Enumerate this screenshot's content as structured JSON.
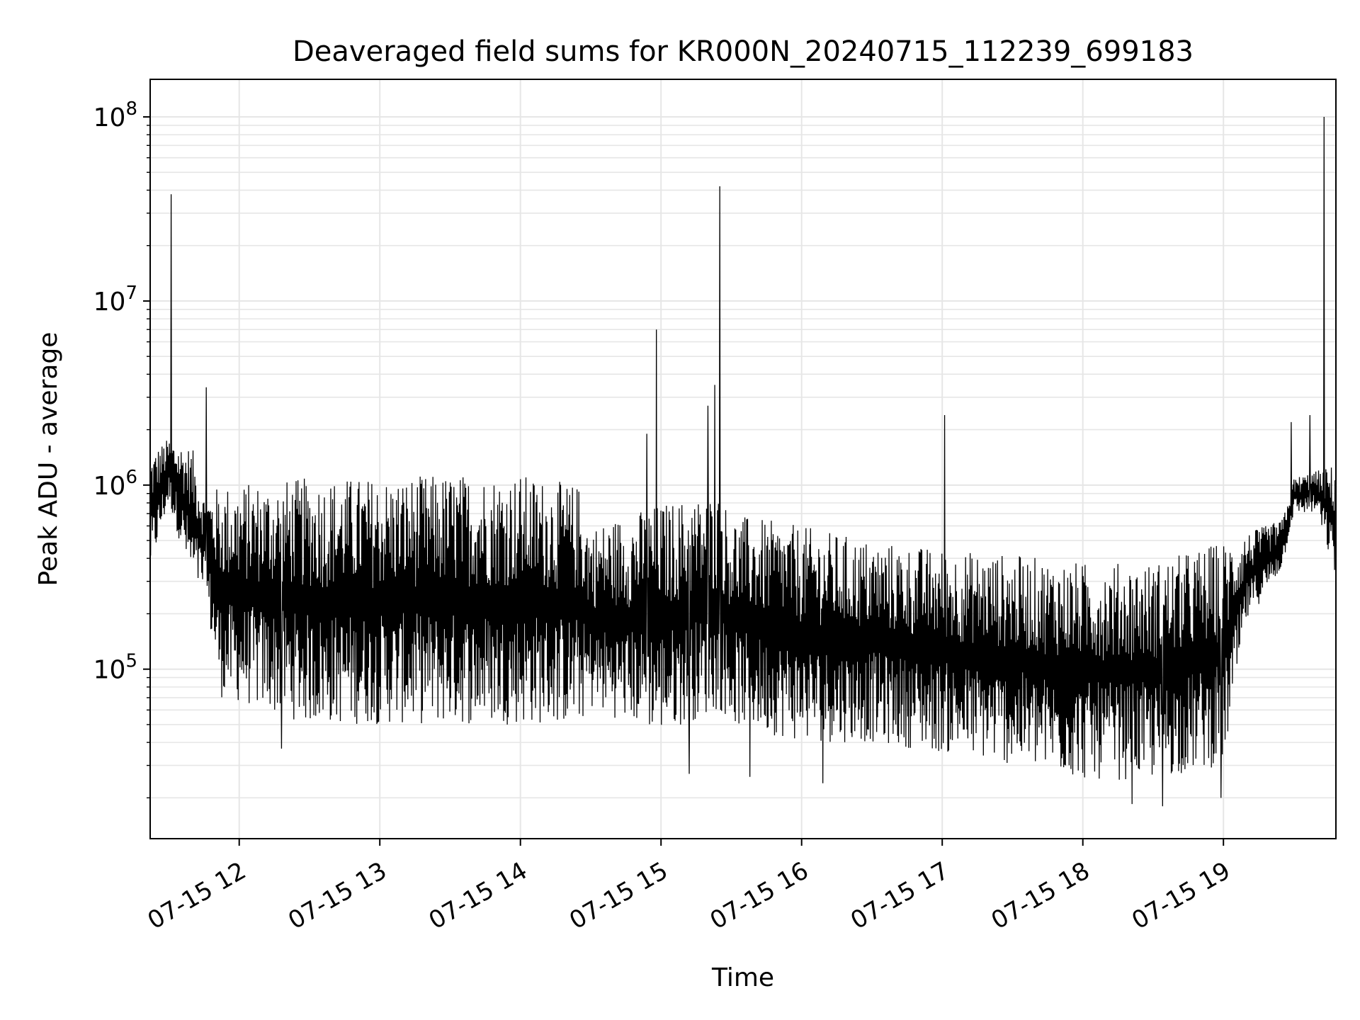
{
  "chart_data": {
    "type": "line",
    "title": "Deaveraged field sums for KR000N_20240715_112239_699183",
    "xlabel": "Time",
    "ylabel": "Peak ADU - average",
    "y_scale": "log",
    "ylim": [
      12000,
      160000000
    ],
    "xlim": [
      "2024-07-15 11:22",
      "2024-07-15 19:48"
    ],
    "grid": true,
    "line_color": "#000000",
    "grid_color": "#e6e6e6",
    "x_ticks": [
      {
        "label": "07-15 12",
        "time": "2024-07-15 12:00"
      },
      {
        "label": "07-15 13",
        "time": "2024-07-15 13:00"
      },
      {
        "label": "07-15 14",
        "time": "2024-07-15 14:00"
      },
      {
        "label": "07-15 15",
        "time": "2024-07-15 15:00"
      },
      {
        "label": "07-15 16",
        "time": "2024-07-15 16:00"
      },
      {
        "label": "07-15 17",
        "time": "2024-07-15 17:00"
      },
      {
        "label": "07-15 18",
        "time": "2024-07-15 18:00"
      },
      {
        "label": "07-15 19",
        "time": "2024-07-15 19:00"
      }
    ],
    "y_ticks": [
      {
        "base": "10",
        "exp": "5",
        "value": 100000
      },
      {
        "base": "10",
        "exp": "6",
        "value": 1000000
      },
      {
        "base": "10",
        "exp": "7",
        "value": 10000000
      },
      {
        "base": "10",
        "exp": "8",
        "value": 100000000
      }
    ],
    "series": [
      {
        "envelope": [
          {
            "time": "2024-07-15 11:22",
            "upper": 1500000,
            "lower": 330000
          },
          {
            "time": "2024-07-15 11:30",
            "upper": 1800000,
            "lower": 800000
          },
          {
            "time": "2024-07-15 11:40",
            "upper": 1600000,
            "lower": 280000
          },
          {
            "time": "2024-07-15 11:45",
            "upper": 900000,
            "lower": 250000
          },
          {
            "time": "2024-07-15 11:52",
            "upper": 1000000,
            "lower": 70000
          },
          {
            "time": "2024-07-15 12:30",
            "upper": 1100000,
            "lower": 50000
          },
          {
            "time": "2024-07-15 13:00",
            "upper": 1100000,
            "lower": 50000
          },
          {
            "time": "2024-07-15 13:30",
            "upper": 1150000,
            "lower": 50000
          },
          {
            "time": "2024-07-15 14:00",
            "upper": 1150000,
            "lower": 50000
          },
          {
            "time": "2024-07-15 14:25",
            "upper": 1000000,
            "lower": 50000
          },
          {
            "time": "2024-07-15 14:30",
            "upper": 600000,
            "lower": 60000
          },
          {
            "time": "2024-07-15 15:00",
            "upper": 800000,
            "lower": 45000
          },
          {
            "time": "2024-07-15 15:25",
            "upper": 900000,
            "lower": 60000
          },
          {
            "time": "2024-07-15 15:30",
            "upper": 700000,
            "lower": 50000
          },
          {
            "time": "2024-07-15 16:00",
            "upper": 600000,
            "lower": 40000
          },
          {
            "time": "2024-07-15 16:30",
            "upper": 500000,
            "lower": 40000
          },
          {
            "time": "2024-07-15 17:00",
            "upper": 450000,
            "lower": 35000
          },
          {
            "time": "2024-07-15 17:30",
            "upper": 420000,
            "lower": 30000
          },
          {
            "time": "2024-07-15 18:00",
            "upper": 380000,
            "lower": 25000
          },
          {
            "time": "2024-07-15 18:30",
            "upper": 380000,
            "lower": 25000
          },
          {
            "time": "2024-07-15 19:00",
            "upper": 500000,
            "lower": 30000
          },
          {
            "time": "2024-07-15 19:10",
            "upper": 550000,
            "lower": 180000
          },
          {
            "time": "2024-07-15 19:25",
            "upper": 650000,
            "lower": 350000
          },
          {
            "time": "2024-07-15 19:30",
            "upper": 1100000,
            "lower": 700000
          },
          {
            "time": "2024-07-15 19:40",
            "upper": 1200000,
            "lower": 700000
          },
          {
            "time": "2024-07-15 19:48",
            "upper": 1300000,
            "lower": 300000
          }
        ],
        "spikes": [
          {
            "time": "2024-07-15 11:31",
            "value": 38000000
          },
          {
            "time": "2024-07-15 11:46",
            "value": 3400000
          },
          {
            "time": "2024-07-15 14:58",
            "value": 7000000
          },
          {
            "time": "2024-07-15 14:54",
            "value": 1900000
          },
          {
            "time": "2024-07-15 15:20",
            "value": 2700000
          },
          {
            "time": "2024-07-15 15:23",
            "value": 3500000
          },
          {
            "time": "2024-07-15 15:25",
            "value": 42000000
          },
          {
            "time": "2024-07-15 17:01",
            "value": 2400000
          },
          {
            "time": "2024-07-15 19:29",
            "value": 2200000
          },
          {
            "time": "2024-07-15 19:37",
            "value": 2400000
          },
          {
            "time": "2024-07-15 19:43",
            "value": 100000000
          },
          {
            "time": "2024-07-15 18:34",
            "value": 18000
          },
          {
            "time": "2024-07-15 18:21",
            "value": 18500
          },
          {
            "time": "2024-07-15 18:59",
            "value": 20000
          },
          {
            "time": "2024-07-15 15:12",
            "value": 27000
          },
          {
            "time": "2024-07-15 15:38",
            "value": 26000
          },
          {
            "time": "2024-07-15 16:09",
            "value": 24000
          },
          {
            "time": "2024-07-15 12:18",
            "value": 37000
          }
        ]
      }
    ]
  }
}
